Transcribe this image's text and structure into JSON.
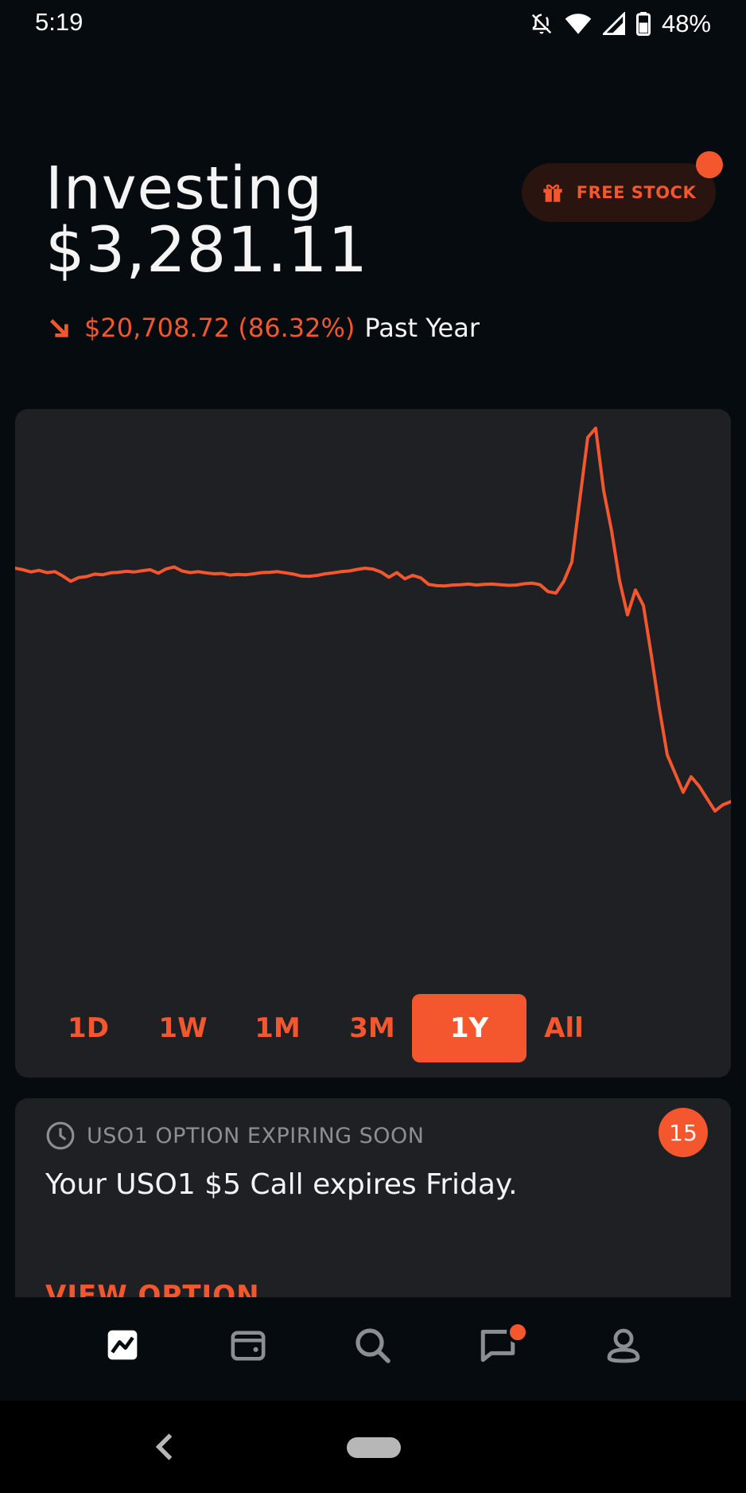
{
  "status_bar": {
    "time": "5:19",
    "battery": "48%"
  },
  "header": {
    "title": "Investing",
    "balance": "$3,281.11",
    "change_value": "$20,708.72 (86.32%)",
    "change_period": "Past Year"
  },
  "promo": {
    "free_stock_label": "FREE STOCK"
  },
  "colors": {
    "accent": "#f4572e",
    "background": "#060b10",
    "card": "#1e2024",
    "muted": "#8b8f94"
  },
  "chart_data": {
    "type": "line",
    "series": [
      {
        "values": [
          100,
          99.5,
          98.8,
          99.3,
          98.6,
          98.9,
          97.5,
          95.8,
          97.0,
          97.3,
          98.1,
          97.9,
          98.5,
          98.7,
          99.0,
          98.8,
          99.2,
          99.5,
          98.4,
          99.8,
          100.4,
          99.1,
          98.6,
          98.9,
          98.5,
          98.2,
          98.3,
          97.8,
          98.0,
          97.9,
          98.2,
          98.6,
          98.7,
          98.9,
          98.5,
          98.1,
          97.5,
          97.4,
          97.7,
          98.2,
          98.5,
          98.9,
          99.1,
          99.6,
          100.0,
          99.7,
          98.8,
          97.1,
          98.6,
          96.6,
          97.7,
          96.9,
          94.8,
          94.4,
          94.3,
          94.6,
          94.7,
          94.9,
          94.6,
          94.8,
          94.9,
          94.7,
          94.5,
          94.6,
          95.0,
          95.2,
          94.7,
          92.5,
          92.0,
          95.8,
          102.0,
          122.0,
          142.0,
          145.0,
          125.0,
          112.0,
          96.0,
          85.0,
          93.0,
          88.0,
          72.0,
          55.0,
          40.0,
          34.0,
          28.0,
          33.0,
          30.0,
          26.0,
          22.0,
          24.0,
          25.0
        ]
      }
    ],
    "period": "1Y",
    "grid": false,
    "legend": "none"
  },
  "range_tabs": [
    {
      "label": "1D",
      "active": false
    },
    {
      "label": "1W",
      "active": false
    },
    {
      "label": "1M",
      "active": false
    },
    {
      "label": "3M",
      "active": false
    },
    {
      "label": "1Y",
      "active": true
    },
    {
      "label": "All",
      "active": false
    }
  ],
  "alert": {
    "title": "USO1 OPTION EXPIRING SOON",
    "body": "Your USO1 $5 Call expires Friday.",
    "link": "VIEW OPTION",
    "badge_count": "15"
  },
  "bottom_nav": {
    "items": [
      {
        "name": "portfolio",
        "icon": "chart-icon",
        "active": true
      },
      {
        "name": "wallet",
        "icon": "wallet-icon",
        "active": false
      },
      {
        "name": "search",
        "icon": "search-icon",
        "active": false
      },
      {
        "name": "messages",
        "icon": "message-icon",
        "active": false,
        "has_notification": true
      },
      {
        "name": "account",
        "icon": "person-icon",
        "active": false
      }
    ]
  }
}
